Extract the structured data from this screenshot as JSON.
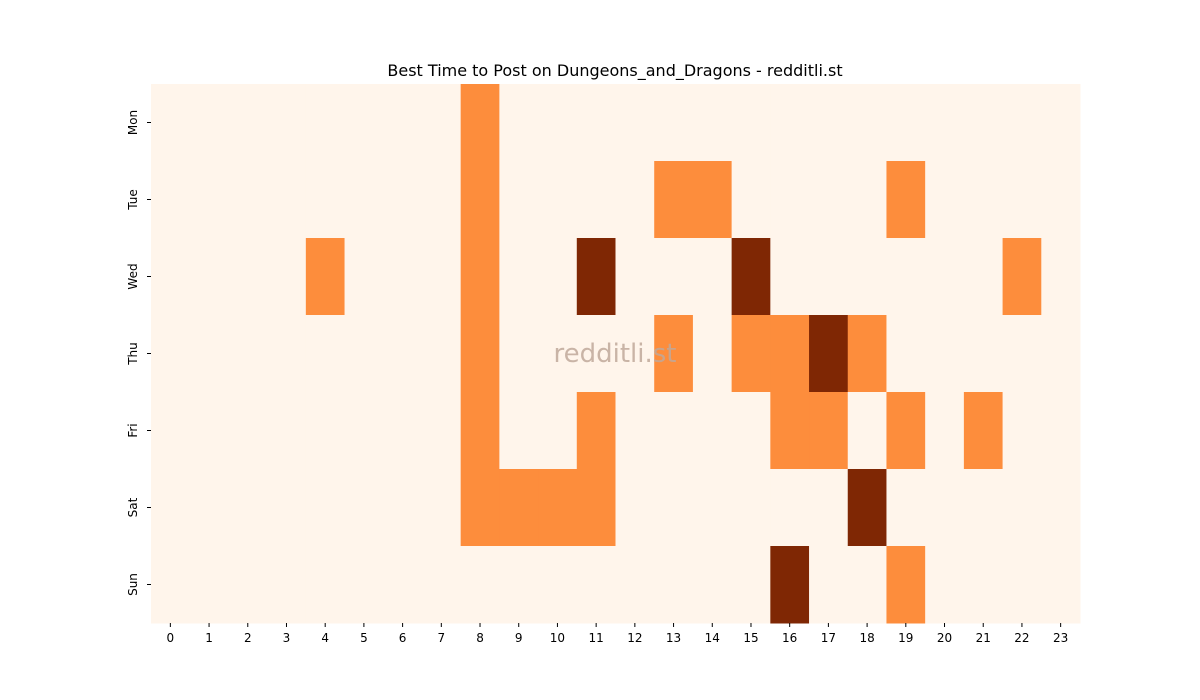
{
  "chart_data": {
    "type": "heatmap",
    "title": "Best Time to Post on Dungeons_and_Dragons - redditli.st",
    "watermark": "redditli.st",
    "x_categories": [
      0,
      1,
      2,
      3,
      4,
      5,
      6,
      7,
      8,
      9,
      10,
      11,
      12,
      13,
      14,
      15,
      16,
      17,
      18,
      19,
      20,
      21,
      22,
      23
    ],
    "y_categories": [
      "Mon",
      "Tue",
      "Wed",
      "Thu",
      "Fri",
      "Sat",
      "Sun"
    ],
    "values": [
      [
        0,
        0,
        0,
        0,
        0,
        0,
        0,
        0,
        1,
        0,
        0,
        0,
        0,
        0,
        0,
        0,
        0,
        0,
        0,
        0,
        0,
        0,
        0,
        0
      ],
      [
        0,
        0,
        0,
        0,
        0,
        0,
        0,
        0,
        1,
        0,
        0,
        0,
        0,
        1,
        1,
        0,
        0,
        0,
        0,
        1,
        0,
        0,
        0,
        0
      ],
      [
        0,
        0,
        0,
        0,
        1,
        0,
        0,
        0,
        1,
        0,
        0,
        2,
        0,
        0,
        0,
        2,
        0,
        0,
        0,
        0,
        0,
        0,
        1,
        0
      ],
      [
        0,
        0,
        0,
        0,
        0,
        0,
        0,
        0,
        1,
        0,
        0,
        0,
        0,
        1,
        0,
        1,
        1,
        2,
        1,
        0,
        0,
        0,
        0,
        0
      ],
      [
        0,
        0,
        0,
        0,
        0,
        0,
        0,
        0,
        1,
        0,
        0,
        1,
        0,
        0,
        0,
        0,
        1,
        1,
        0,
        1,
        0,
        1,
        0,
        0
      ],
      [
        0,
        0,
        0,
        0,
        0,
        0,
        0,
        0,
        1,
        1,
        1,
        1,
        0,
        0,
        0,
        0,
        0,
        0,
        2,
        0,
        0,
        0,
        0,
        0
      ],
      [
        0,
        0,
        0,
        0,
        0,
        0,
        0,
        0,
        0,
        0,
        0,
        0,
        0,
        0,
        0,
        0,
        2,
        0,
        0,
        1,
        0,
        0,
        0,
        0
      ]
    ],
    "vlim": [
      0,
      2
    ],
    "colormap": [
      "#fff5eb",
      "#fd8d3c",
      "#7f2704"
    ]
  }
}
